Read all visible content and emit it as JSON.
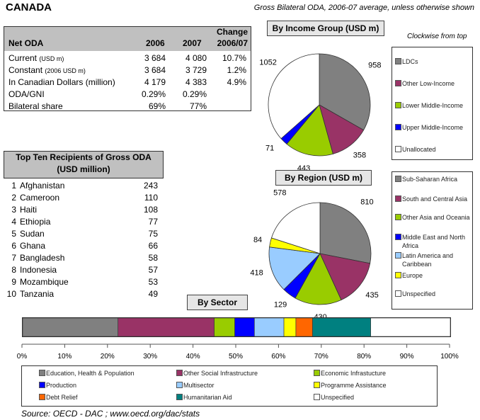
{
  "header": {
    "country": "CANADA",
    "subtitle": "Gross Bilateral ODA, 2006-07 average, unless otherwise shown",
    "clockwise_note": "Clockwise from top"
  },
  "net_oda": {
    "title": "Net ODA",
    "col_2006": "2006",
    "col_2007": "2007",
    "col_change_1": "Change",
    "col_change_2": "2006/07",
    "rows": [
      {
        "label": "Current",
        "unit": "(USD m)",
        "v2006": "3 684",
        "v2007": "4 080",
        "change": "10.7%"
      },
      {
        "label": "Constant",
        "unit": "(2006 USD m)",
        "v2006": "3 684",
        "v2007": "3 729",
        "change": "1.2%"
      },
      {
        "label": "In Canadian Dollars (million)",
        "unit": "",
        "v2006": "4 179",
        "v2007": "4 383",
        "change": "4.9%"
      },
      {
        "label": "ODA/GNI",
        "unit": "",
        "v2006": "0.29%",
        "v2007": "0.29%",
        "change": ""
      },
      {
        "label": "Bilateral share",
        "unit": "",
        "v2006": "69%",
        "v2007": "77%",
        "change": ""
      }
    ]
  },
  "top_ten": {
    "title_1": "Top Ten Recipients of Gross ODA",
    "title_2": "(USD million)",
    "rows": [
      {
        "rank": "1",
        "name": "Afghanistan",
        "value": "243"
      },
      {
        "rank": "2",
        "name": "Cameroon",
        "value": "110"
      },
      {
        "rank": "3",
        "name": "Haiti",
        "value": "108"
      },
      {
        "rank": "4",
        "name": "Ethiopia",
        "value": "77"
      },
      {
        "rank": "5",
        "name": "Sudan",
        "value": "75"
      },
      {
        "rank": "6",
        "name": "Ghana",
        "value": "66"
      },
      {
        "rank": "7",
        "name": "Bangladesh",
        "value": "58"
      },
      {
        "rank": "8",
        "name": "Indonesia",
        "value": "57"
      },
      {
        "rank": "9",
        "name": "Mozambique",
        "value": "53"
      },
      {
        "rank": "10",
        "name": "Tanzania",
        "value": "49"
      }
    ]
  },
  "chart_data": [
    {
      "type": "pie",
      "title": "By Income Group (USD m)",
      "direction": "clockwise from top",
      "slices": [
        {
          "label": "LDCs",
          "value": 958,
          "color": "#808080"
        },
        {
          "label": "Other Low-Income",
          "value": 358,
          "color": "#993366"
        },
        {
          "label": "Lower Middle-Income",
          "value": 443,
          "color": "#99cc00"
        },
        {
          "label": "Upper Middle-Income",
          "value": 71,
          "color": "#0000ff"
        },
        {
          "label": "Unallocated",
          "value": 1052,
          "color": "#ffffff"
        }
      ]
    },
    {
      "type": "pie",
      "title": "By Region (USD m)",
      "direction": "clockwise from top",
      "slices": [
        {
          "label": "Sub-Saharan Africa",
          "value": 810,
          "color": "#808080"
        },
        {
          "label": "South and Central Asia",
          "value": 435,
          "color": "#993366"
        },
        {
          "label": "Other Asia and Oceania",
          "value": 430,
          "color": "#99cc00"
        },
        {
          "label": "Middle East and North Africa",
          "value": 129,
          "color": "#0000ff"
        },
        {
          "label": "Latin America and Caribbean",
          "value": 418,
          "color": "#99ccff"
        },
        {
          "label": "Europe",
          "value": 84,
          "color": "#ffff00"
        },
        {
          "label": "Unspecified",
          "value": 578,
          "color": "#ffffff"
        }
      ]
    },
    {
      "type": "bar",
      "orientation": "horizontal-stacked-100",
      "title": "By Sector",
      "x_ticks": [
        "0%",
        "10%",
        "20%",
        "30%",
        "40%",
        "50%",
        "60%",
        "70%",
        "80%",
        "90%",
        "100%"
      ],
      "xlim": [
        0,
        100
      ],
      "segments": [
        {
          "label": "Education, Health & Population",
          "value": 22.3,
          "color": "#808080"
        },
        {
          "label": "Other Social Infrastructure",
          "value": 22.5,
          "color": "#993366"
        },
        {
          "label": "Economic Infrastucture",
          "value": 4.8,
          "color": "#99cc00"
        },
        {
          "label": "Production",
          "value": 4.6,
          "color": "#0000ff"
        },
        {
          "label": "Multisector",
          "value": 6.9,
          "color": "#99ccff"
        },
        {
          "label": "Programme Assistance",
          "value": 2.8,
          "color": "#ffff00"
        },
        {
          "label": "Debt Relief",
          "value": 3.9,
          "color": "#ff6600"
        },
        {
          "label": "Humanitarian Aid",
          "value": 13.6,
          "color": "#008080"
        },
        {
          "label": "Unspecified",
          "value": 18.6,
          "color": "#ffffff"
        }
      ]
    }
  ],
  "footer": {
    "source": "Source:  OECD - DAC ; www.oecd.org/dac/stats"
  }
}
